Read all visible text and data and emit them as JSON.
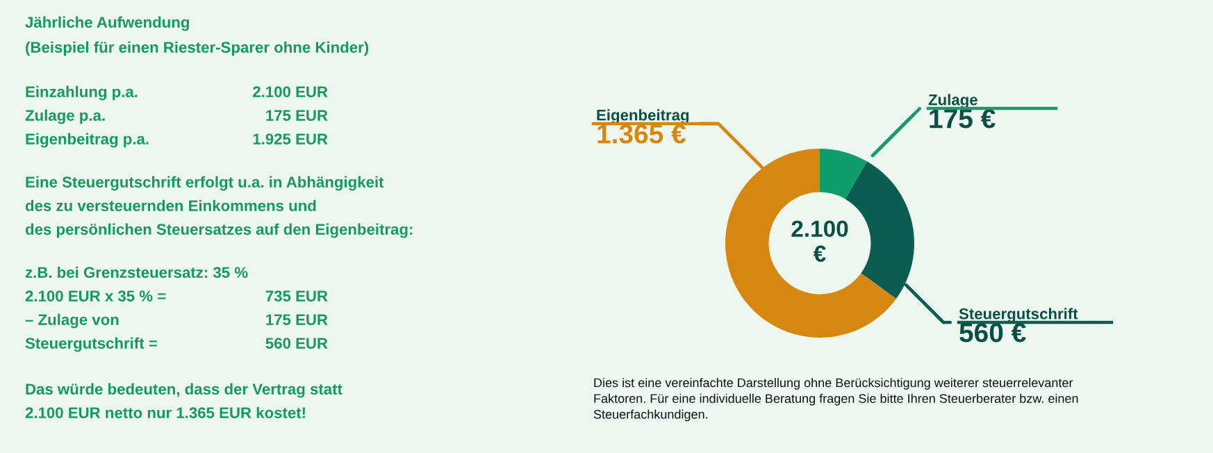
{
  "chart_data": {
    "type": "donut",
    "categories": [
      "Zulage",
      "Steuergutschrift",
      "Eigenbeitrag"
    ],
    "values": [
      175,
      560,
      1365
    ],
    "colors": [
      "#0f9d6c",
      "#0b5e4f",
      "#d6870f"
    ],
    "value_labels": [
      "175 €",
      "560 €",
      "1.365 €"
    ],
    "annotations": [
      "2.100\n€",
      "Jährliche Aufwendung",
      "(Beispiel für einen Riester-Sparer ohne Kinder)",
      "Einzahlung p.a.\t2.100 EUR",
      "Zulage p.a.\t175 EUR",
      "Eigenbeitrag p.a.\t1.925 EUR",
      "Eine Steuergutschrift erfolgt u.a. in Abhängigkeit",
      "des zu versteuernden Einkommens und",
      "des persönlichen Steuersatzes auf den Eigenbeitrag:",
      "z.B. bei Grenzsteuersatz: 35 %",
      "2.100 EUR x 35 % =\t735 EUR",
      "– Zulage von\t175 EUR",
      "Steuergutschrift =\t560 EUR",
      "Das würde bedeuten, dass der Vertrag statt",
      "2.100 EUR netto nur 1.365 EUR kostet!",
      "Dies ist eine vereinfachte Darstellung ohne Berücksichtigung weiterer steuerrelevanter\nFaktoren. Für eine individuelle Beratung fragen Sie bitte Ihren Steuerberater bzw. einen\nSteuerfachkundigen."
    ]
  }
}
